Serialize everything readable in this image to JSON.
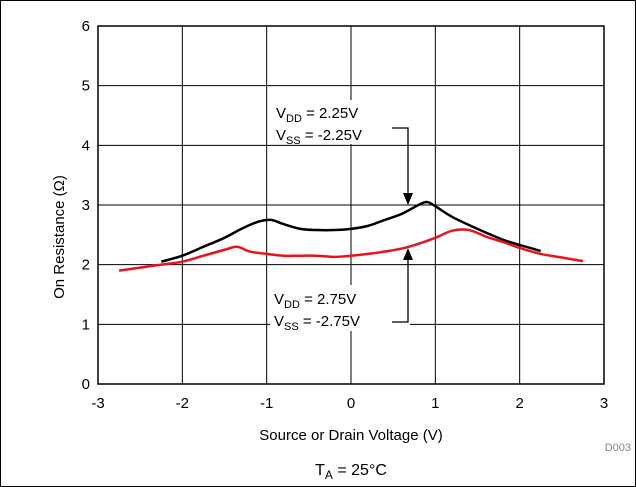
{
  "chart_data": {
    "type": "line",
    "ylabel": "On Resistance (Ω)",
    "xlabel": "Source or Drain Voltage (V)",
    "xlim": [
      -3,
      3
    ],
    "ylim": [
      0,
      6
    ],
    "x_ticks": [
      "-3",
      "-2",
      "-1",
      "0",
      "1",
      "2",
      "3"
    ],
    "y_ticks": [
      "0",
      "1",
      "2",
      "3",
      "4",
      "5",
      "6"
    ],
    "grid": true,
    "series": [
      {
        "color": "#000000",
        "label_main": "V",
        "label_sub1": "DD",
        "label_val1": " = 2.25V",
        "label_sub2": "SS",
        "label_val2": " = -2.25V",
        "x": [
          -2.25,
          -2.0,
          -1.75,
          -1.5,
          -1.3,
          -1.1,
          -0.95,
          -0.8,
          -0.6,
          -0.4,
          -0.2,
          0.0,
          0.2,
          0.4,
          0.6,
          0.8,
          0.9,
          1.0,
          1.2,
          1.5,
          1.8,
          2.0,
          2.25
        ],
        "y": [
          2.05,
          2.15,
          2.3,
          2.45,
          2.6,
          2.72,
          2.75,
          2.68,
          2.6,
          2.58,
          2.58,
          2.6,
          2.65,
          2.75,
          2.85,
          3.0,
          3.05,
          2.98,
          2.8,
          2.6,
          2.42,
          2.33,
          2.23
        ]
      },
      {
        "color": "#e8141a",
        "label_main": "V",
        "label_sub1": "DD",
        "label_val1": " = 2.75V",
        "label_sub2": "SS",
        "label_val2": " = -2.75V",
        "x": [
          -2.75,
          -2.5,
          -2.25,
          -2.0,
          -1.75,
          -1.5,
          -1.35,
          -1.2,
          -1.0,
          -0.8,
          -0.6,
          -0.4,
          -0.2,
          0.0,
          0.2,
          0.4,
          0.6,
          0.8,
          1.0,
          1.2,
          1.4,
          1.6,
          1.8,
          2.0,
          2.25,
          2.5,
          2.75
        ],
        "y": [
          1.9,
          1.95,
          2.0,
          2.05,
          2.15,
          2.25,
          2.3,
          2.22,
          2.18,
          2.15,
          2.15,
          2.15,
          2.13,
          2.15,
          2.18,
          2.22,
          2.27,
          2.35,
          2.45,
          2.57,
          2.58,
          2.47,
          2.38,
          2.28,
          2.18,
          2.12,
          2.06
        ]
      }
    ],
    "code": "D003",
    "condition_main": "T",
    "condition_sub": "A",
    "condition_val": " = 25°C"
  }
}
